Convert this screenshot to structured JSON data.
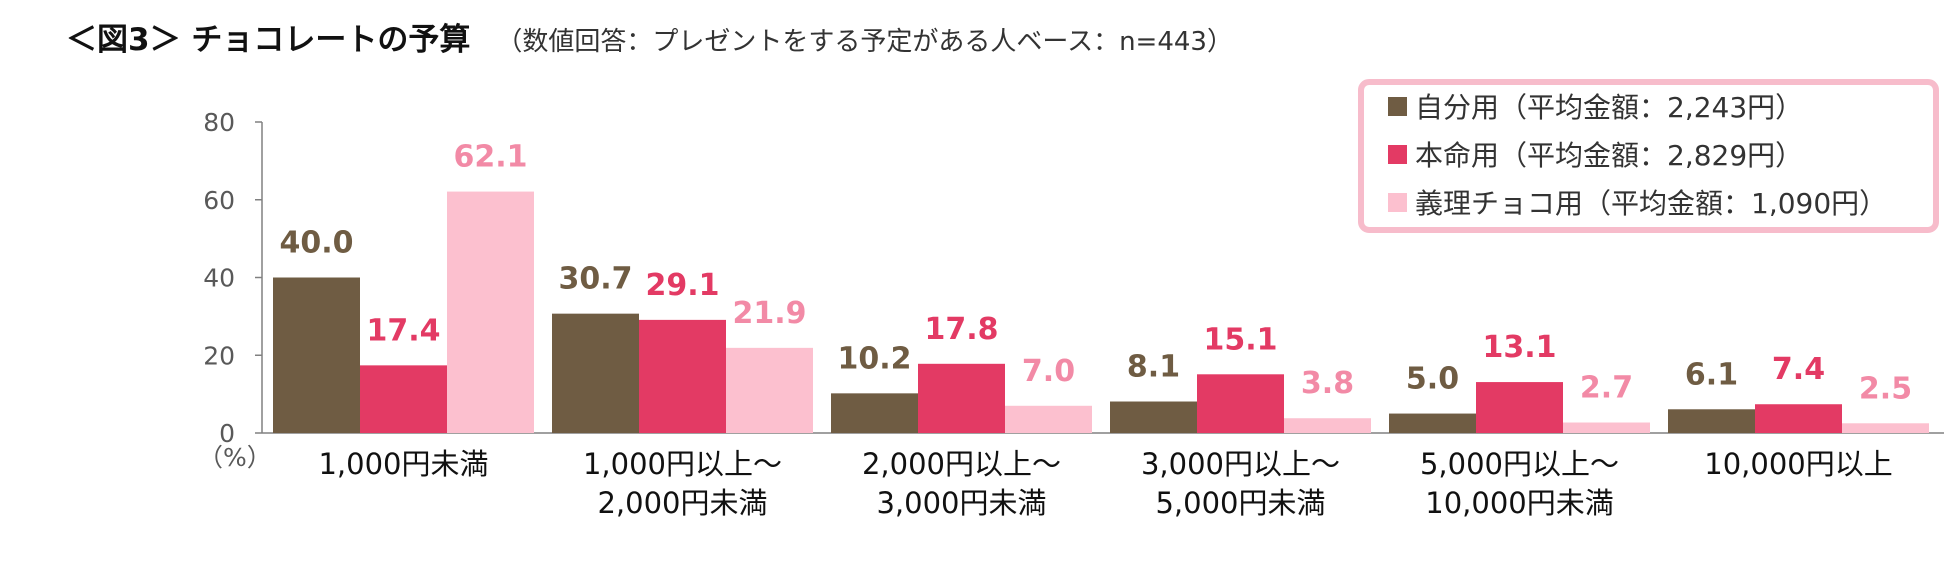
{
  "header": {
    "title": "＜図3＞ チョコレートの予算",
    "subtitle": "（数値回答：プレゼントをする予定がある人ベース：n=443）"
  },
  "chart_data": {
    "type": "bar",
    "title": "＜図3＞ チョコレートの予算",
    "subtitle": "（数値回答：プレゼントをする予定がある人ベース：n=443）",
    "ylabel": "（%）",
    "ylim": [
      0,
      80
    ],
    "yticks": [
      0,
      20,
      40,
      60,
      80
    ],
    "grid": false,
    "legend": "top-right",
    "categories": [
      [
        "1,000円未満"
      ],
      [
        "1,000円以上～",
        "2,000円未満"
      ],
      [
        "2,000円以上～",
        "3,000円未満"
      ],
      [
        "3,000円以上～",
        "5,000円未満"
      ],
      [
        "5,000円以上～",
        "10,000円未満"
      ],
      [
        "10,000円以上"
      ]
    ],
    "series": [
      {
        "name": "自分用（平均金額：2,243円）",
        "color": "#6f5c43",
        "values": [
          40.0,
          30.7,
          10.2,
          8.1,
          5.0,
          6.1
        ],
        "labels": [
          "40.0",
          "30.7",
          "10.2",
          "8.1",
          "5.0",
          "6.1"
        ]
      },
      {
        "name": "本命用（平均金額：2,829円）",
        "color": "#e33a64",
        "values": [
          17.4,
          29.1,
          17.8,
          15.1,
          13.1,
          7.4
        ],
        "labels": [
          "17.4",
          "29.1",
          "17.8",
          "15.1",
          "13.1",
          "7.4"
        ]
      },
      {
        "name": "義理チョコ用（平均金額：1,090円）",
        "color": "#fcc0cf",
        "label_color": "#f28aa6",
        "values": [
          62.1,
          21.9,
          7.0,
          3.8,
          2.7,
          2.5
        ],
        "labels": [
          "62.1",
          "21.9",
          "7.0",
          "3.8",
          "2.7",
          "2.5"
        ]
      }
    ],
    "legend_border_color": "#f7bccb",
    "axis_color": "#808080"
  }
}
